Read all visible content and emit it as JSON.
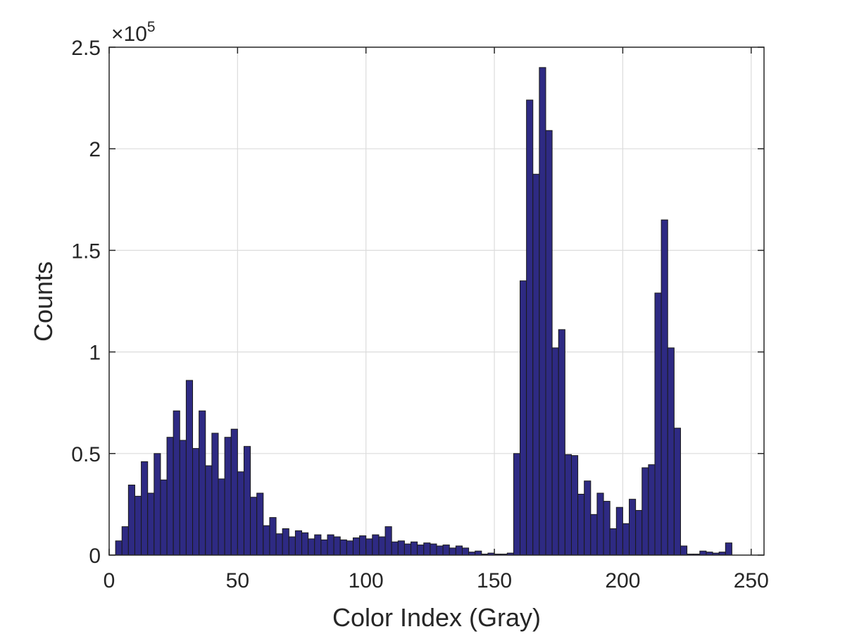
{
  "chart_data": {
    "type": "bar",
    "subtype": "histogram",
    "xlabel": "Color Index (Gray)",
    "ylabel": "Counts",
    "y_multiplier": "×10",
    "y_multiplier_exponent": "5",
    "xlim": [
      0,
      255
    ],
    "ylim": [
      0,
      2.5
    ],
    "y_unit_scale": 100000,
    "x_ticks": [
      "0",
      "50",
      "100",
      "150",
      "200",
      "250"
    ],
    "y_ticks": [
      "0",
      "0.5",
      "1",
      "1.5",
      "2",
      "2.5"
    ],
    "grid": true,
    "bin_width": 2.5,
    "bin_start": 2.5,
    "colors": {
      "bar_fill": "#2e2a83",
      "bar_edge": "#1a1a1a",
      "grid": "#dcdcdc",
      "axis": "#262626"
    },
    "values": [
      0.07,
      0.14,
      0.345,
      0.29,
      0.46,
      0.305,
      0.5,
      0.37,
      0.58,
      0.71,
      0.565,
      0.86,
      0.525,
      0.71,
      0.44,
      0.6,
      0.375,
      0.58,
      0.62,
      0.41,
      0.535,
      0.285,
      0.305,
      0.145,
      0.185,
      0.105,
      0.13,
      0.09,
      0.12,
      0.11,
      0.08,
      0.1,
      0.075,
      0.1,
      0.09,
      0.075,
      0.07,
      0.085,
      0.095,
      0.08,
      0.1,
      0.09,
      0.14,
      0.065,
      0.07,
      0.055,
      0.065,
      0.05,
      0.06,
      0.055,
      0.045,
      0.05,
      0.035,
      0.045,
      0.035,
      0.015,
      0.02,
      0.005,
      0.01,
      0.005,
      0.005,
      0.01,
      0.5,
      1.35,
      2.24,
      1.875,
      2.4,
      2.09,
      1.02,
      1.11,
      0.495,
      0.49,
      0.3,
      0.365,
      0.2,
      0.305,
      0.265,
      0.13,
      0.235,
      0.155,
      0.275,
      0.22,
      0.43,
      0.445,
      1.29,
      1.65,
      1.02,
      0.625,
      0.045,
      0.005,
      0.005,
      0.02,
      0.015,
      0.01,
      0.015,
      0.06
    ]
  }
}
